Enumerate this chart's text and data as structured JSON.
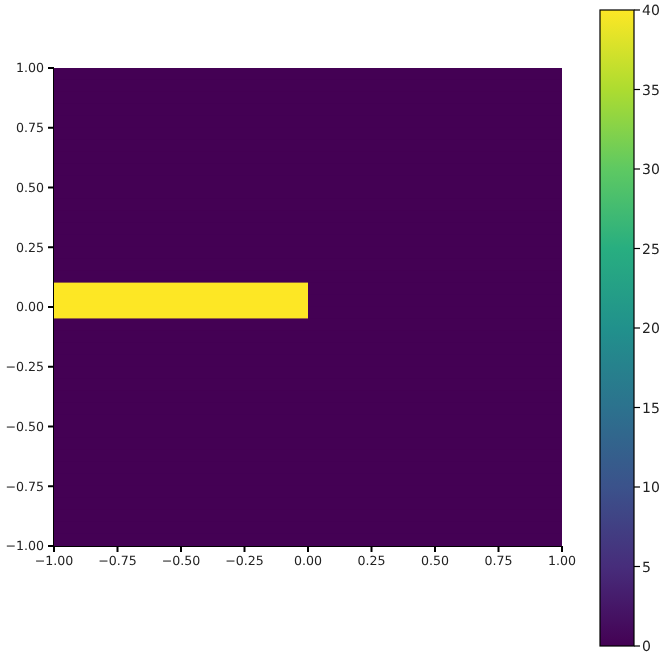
{
  "chart_data": {
    "type": "heatmap",
    "cells": [
      [
        0,
        0
      ],
      [
        0,
        0
      ],
      [
        0,
        0
      ],
      [
        0,
        0
      ],
      [
        0,
        0
      ],
      [
        0,
        0
      ],
      [
        0,
        0
      ],
      [
        0,
        0
      ],
      [
        0,
        0
      ],
      [
        0,
        0
      ],
      [
        0,
        0
      ],
      [
        0,
        0
      ],
      [
        0,
        0
      ],
      [
        0,
        0
      ],
      [
        0,
        0
      ],
      [
        0,
        0
      ],
      [
        0,
        0
      ],
      [
        0,
        0
      ],
      [
        40,
        0
      ],
      [
        40,
        0
      ],
      [
        40,
        0
      ],
      [
        0,
        0
      ],
      [
        0,
        0
      ],
      [
        0,
        0
      ],
      [
        0,
        0
      ],
      [
        0,
        0
      ],
      [
        0,
        0
      ],
      [
        0,
        0
      ],
      [
        0,
        0
      ],
      [
        0,
        0
      ],
      [
        0,
        0
      ],
      [
        0,
        0
      ],
      [
        0,
        0
      ],
      [
        0,
        0
      ],
      [
        0,
        0
      ],
      [
        0,
        0
      ],
      [
        0,
        0
      ],
      [
        0,
        0
      ],
      [
        0,
        0
      ],
      [
        0,
        0
      ]
    ],
    "xlim": [
      -1,
      1
    ],
    "ylim": [
      -1,
      1
    ],
    "xticks": [
      {
        "value": -1,
        "label": "−1.00"
      },
      {
        "value": -0.75,
        "label": "−0.75"
      },
      {
        "value": -0.5,
        "label": "−0.50"
      },
      {
        "value": -0.25,
        "label": "−0.25"
      },
      {
        "value": 0,
        "label": "0.00"
      },
      {
        "value": 0.25,
        "label": "0.25"
      },
      {
        "value": 0.5,
        "label": "0.50"
      },
      {
        "value": 0.75,
        "label": "0.75"
      },
      {
        "value": 1,
        "label": "1.00"
      }
    ],
    "yticks": [
      {
        "value": -1,
        "label": "−1.00"
      },
      {
        "value": -0.75,
        "label": "−0.75"
      },
      {
        "value": -0.5,
        "label": "−0.50"
      },
      {
        "value": -0.25,
        "label": "−0.25"
      },
      {
        "value": 0,
        "label": "0.00"
      },
      {
        "value": 0.25,
        "label": "0.25"
      },
      {
        "value": 0.5,
        "label": "0.50"
      },
      {
        "value": 0.75,
        "label": "0.75"
      },
      {
        "value": 1,
        "label": "1.00"
      }
    ],
    "clim": [
      0,
      40
    ],
    "cticks": [
      0,
      5,
      10,
      15,
      20,
      25,
      30,
      35,
      40
    ]
  }
}
